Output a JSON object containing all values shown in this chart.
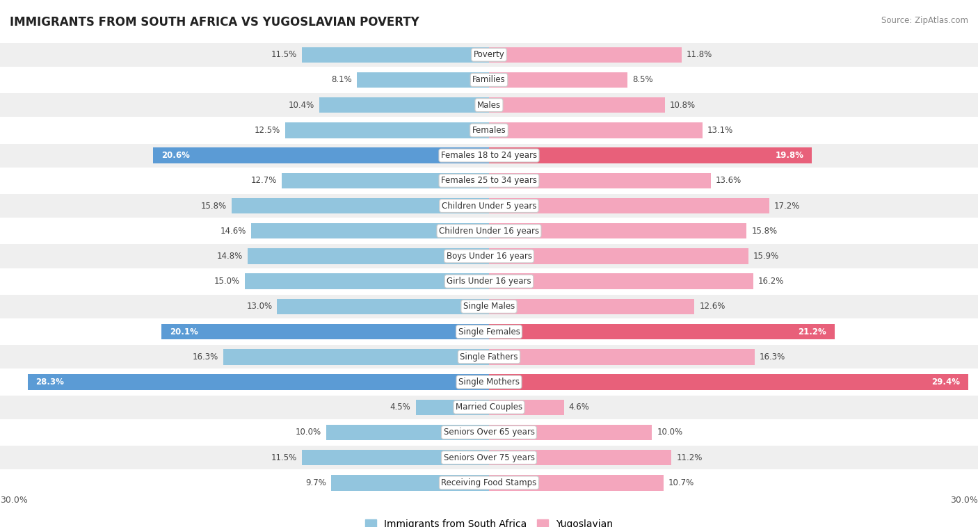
{
  "title": "IMMIGRANTS FROM SOUTH AFRICA VS YUGOSLAVIAN POVERTY",
  "source": "Source: ZipAtlas.com",
  "categories": [
    "Poverty",
    "Families",
    "Males",
    "Females",
    "Females 18 to 24 years",
    "Females 25 to 34 years",
    "Children Under 5 years",
    "Children Under 16 years",
    "Boys Under 16 years",
    "Girls Under 16 years",
    "Single Males",
    "Single Females",
    "Single Fathers",
    "Single Mothers",
    "Married Couples",
    "Seniors Over 65 years",
    "Seniors Over 75 years",
    "Receiving Food Stamps"
  ],
  "south_africa": [
    11.5,
    8.1,
    10.4,
    12.5,
    20.6,
    12.7,
    15.8,
    14.6,
    14.8,
    15.0,
    13.0,
    20.1,
    16.3,
    28.3,
    4.5,
    10.0,
    11.5,
    9.7
  ],
  "yugoslavian": [
    11.8,
    8.5,
    10.8,
    13.1,
    19.8,
    13.6,
    17.2,
    15.8,
    15.9,
    16.2,
    12.6,
    21.2,
    16.3,
    29.4,
    4.6,
    10.0,
    11.2,
    10.7
  ],
  "blue_color": "#92C5DE",
  "pink_color": "#F4A6BD",
  "blue_highlight": "#5B9BD5",
  "pink_highlight": "#E8607A",
  "row_bg_light": "#EFEFEF",
  "row_bg_white": "#FFFFFF",
  "bar_height": 0.62,
  "xlim": 30.0,
  "highlight_threshold": 19.5,
  "legend_label_left": "Immigrants from South Africa",
  "legend_label_right": "Yugoslavian"
}
